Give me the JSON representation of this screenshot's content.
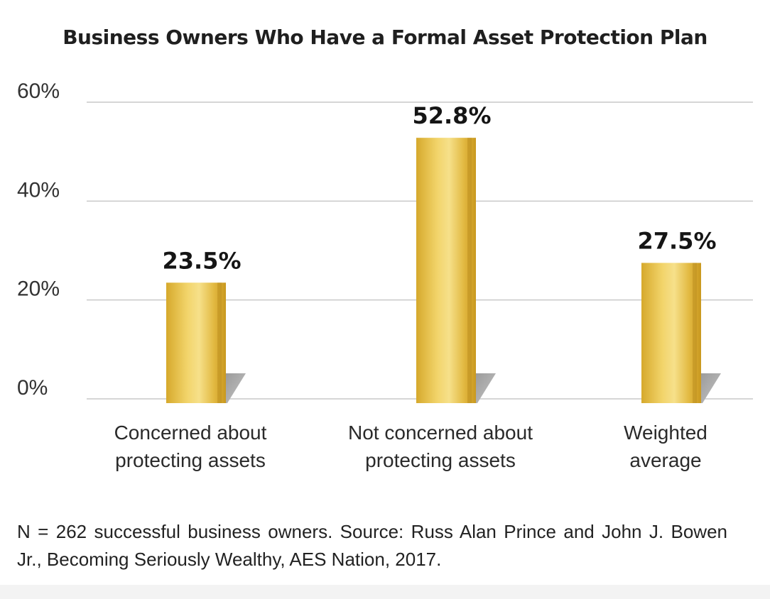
{
  "chart_data": {
    "type": "bar",
    "title": "Business Owners Who Have a Formal Asset Protection Plan",
    "categories": [
      [
        "Concerned about",
        "protecting assets"
      ],
      [
        "Not concerned about",
        "protecting assets"
      ],
      [
        "Weighted",
        "average"
      ]
    ],
    "values": [
      23.5,
      52.8,
      27.5
    ],
    "value_labels": [
      "23.5%",
      "52.8%",
      "27.5%"
    ],
    "yticks": [
      0,
      20,
      40,
      60
    ],
    "ytick_labels": [
      "0%",
      "20%",
      "40%",
      "60%"
    ],
    "ylim": [
      0,
      60
    ],
    "grid": true,
    "legend": "none",
    "bar_color": "#e0b63a",
    "bar_highlight": "#f5df7a",
    "bar_shadow": "#a8a8a8"
  },
  "footnote": "N = 262 successful business owners. Source: Russ Alan Prince and John J. Bowen Jr., Becoming Seriously Wealthy, AES Nation, 2017."
}
